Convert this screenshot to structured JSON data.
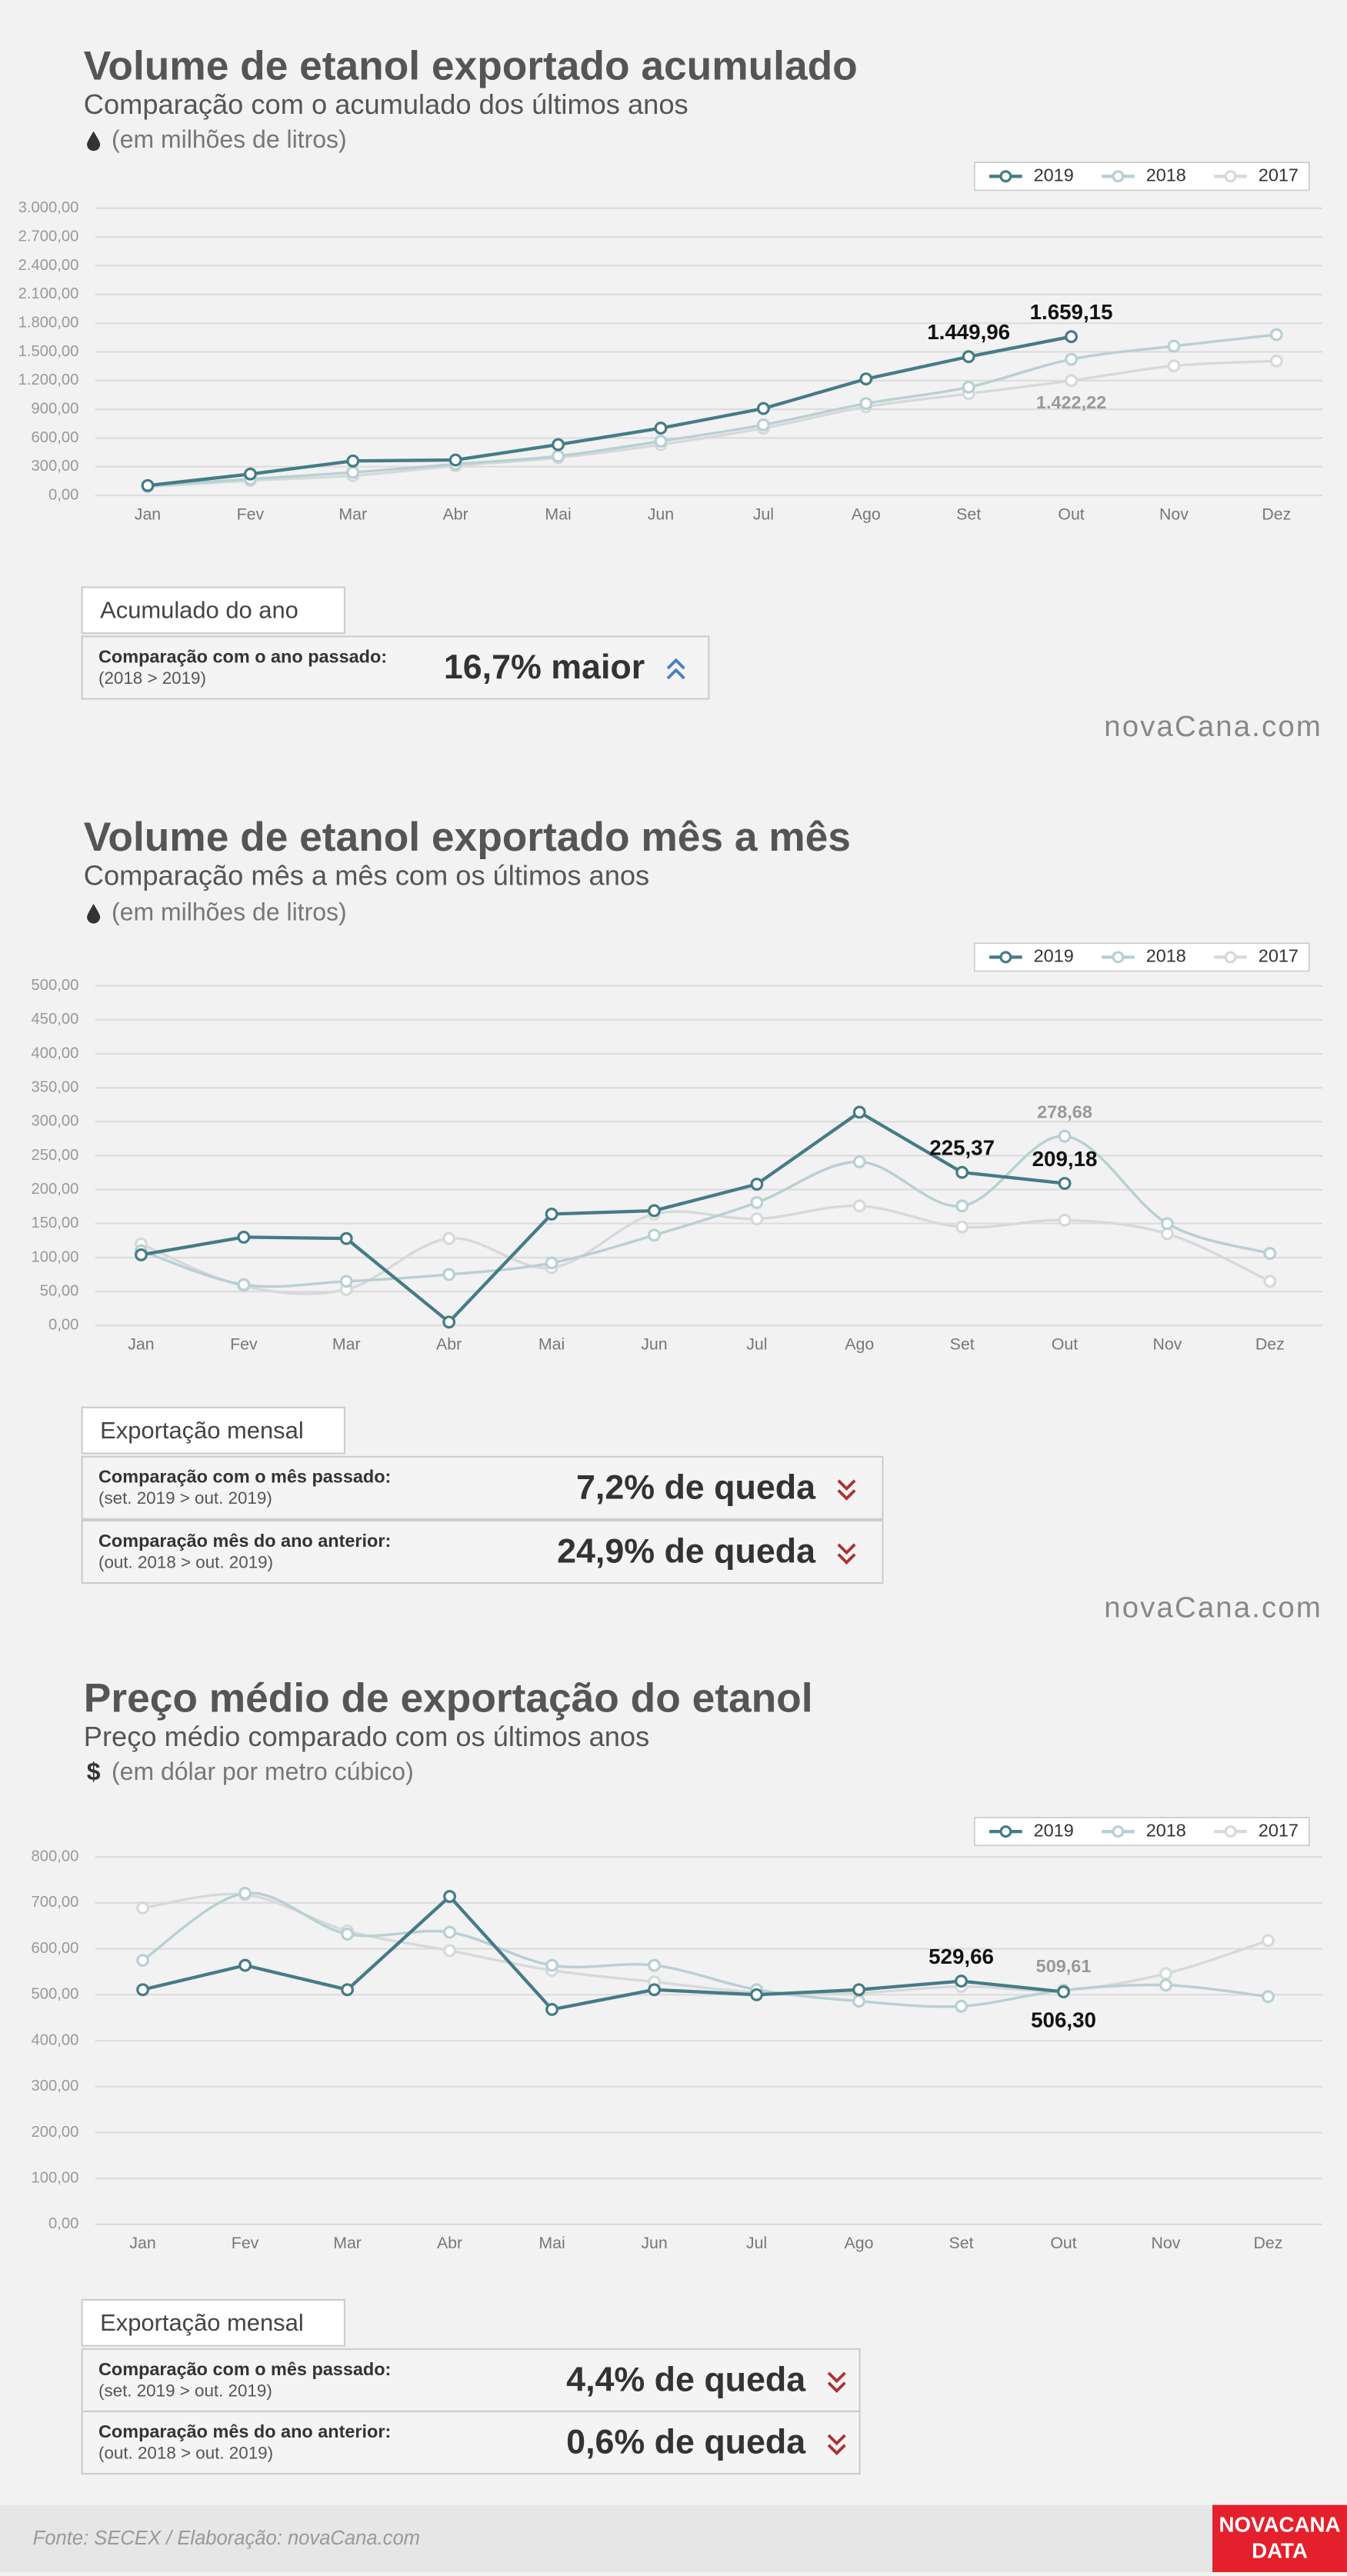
{
  "chart_data": [
    {
      "type": "line",
      "title": "Volume de etanol exportado acumulado",
      "subtitle": "Comparação com o acumulado dos últimos anos",
      "unit_note": "(em milhões de litros)",
      "categories": [
        "Jan",
        "Fev",
        "Mar",
        "Abr",
        "Mai",
        "Jun",
        "Jul",
        "Ago",
        "Set",
        "Out",
        "Nov",
        "Dez"
      ],
      "series": [
        {
          "name": "2019",
          "color": "#457b87",
          "smooth": false,
          "values": [
            103,
            223,
            360,
            370,
            531,
            703,
            908,
            1217,
            1449.96,
            1659.15,
            null,
            null
          ],
          "value_labels": [
            null,
            null,
            null,
            null,
            null,
            null,
            null,
            null,
            "1.449,96",
            "1.659,15",
            null,
            null
          ]
        },
        {
          "name": "2018",
          "color": "#b7d0d3",
          "smooth": true,
          "values": [
            100,
            171,
            240,
            326,
            411,
            566,
            737,
            960,
            1131,
            1422.22,
            1560,
            1680
          ],
          "value_labels": [
            null,
            null,
            null,
            null,
            null,
            null,
            null,
            null,
            null,
            "1.422,22",
            null,
            null
          ]
        },
        {
          "name": "2017",
          "color": "#d6d9da",
          "smooth": true,
          "values": [
            90,
            155,
            206,
            310,
            394,
            531,
            703,
            925,
            1063,
            1200,
            1354,
            1405
          ]
        }
      ],
      "ylim": [
        0,
        3000
      ],
      "yticks": [
        {
          "value": 0,
          "label": "0,00"
        },
        {
          "value": 300,
          "label": "300,00"
        },
        {
          "value": 600,
          "label": "600,00"
        },
        {
          "value": 900,
          "label": "900,00"
        },
        {
          "value": 1200,
          "label": "1.200,00"
        },
        {
          "value": 1500,
          "label": "1.500,00"
        },
        {
          "value": 1800,
          "label": "1.800,00"
        },
        {
          "value": 2100,
          "label": "2.100,00"
        },
        {
          "value": 2400,
          "label": "2.400,00"
        },
        {
          "value": 2700,
          "label": "2.700,00"
        },
        {
          "value": 3000,
          "label": "3.000,00"
        }
      ],
      "grid": true,
      "legend": "top-right"
    },
    {
      "type": "line",
      "title": "Volume de etanol exportado mês a mês",
      "subtitle": "Comparação mês a mês com os últimos anos",
      "unit_note": "(em milhões de litros)",
      "categories": [
        "Jan",
        "Fev",
        "Mar",
        "Abr",
        "Mai",
        "Jun",
        "Jul",
        "Ago",
        "Set",
        "Out",
        "Nov",
        "Dez"
      ],
      "series": [
        {
          "name": "2019",
          "color": "#457b87",
          "smooth": false,
          "values": [
            104,
            130,
            128,
            5,
            164,
            169,
            208,
            314,
            225.37,
            209.18,
            null,
            null
          ],
          "value_labels": [
            null,
            null,
            null,
            null,
            null,
            null,
            null,
            null,
            "225,37",
            "209,18",
            null,
            null
          ]
        },
        {
          "name": "2018",
          "color": "#b7d0d3",
          "smooth": true,
          "values": [
            110,
            60,
            65,
            75,
            92,
            133,
            181,
            241,
            176,
            278.68,
            150,
            106
          ],
          "value_labels": [
            null,
            null,
            null,
            null,
            null,
            null,
            null,
            null,
            null,
            "278,68",
            null,
            null
          ]
        },
        {
          "name": "2017",
          "color": "#d6d9da",
          "smooth": true,
          "values": [
            120,
            58,
            53,
            128,
            85,
            164,
            157,
            176,
            145,
            155,
            135,
            65
          ]
        }
      ],
      "ylim": [
        0,
        500
      ],
      "yticks": [
        {
          "value": 0,
          "label": "0,00"
        },
        {
          "value": 50,
          "label": "50,00"
        },
        {
          "value": 100,
          "label": "100,00"
        },
        {
          "value": 150,
          "label": "150,00"
        },
        {
          "value": 200,
          "label": "200,00"
        },
        {
          "value": 250,
          "label": "250,00"
        },
        {
          "value": 300,
          "label": "300,00"
        },
        {
          "value": 350,
          "label": "350,00"
        },
        {
          "value": 400,
          "label": "400,00"
        },
        {
          "value": 450,
          "label": "450,00"
        },
        {
          "value": 500,
          "label": "500,00"
        }
      ],
      "grid": true,
      "legend": "top-right"
    },
    {
      "type": "line",
      "title": "Preço médio de exportação do etanol",
      "subtitle": "Preço médio comparado com os últimos anos",
      "unit_icon": "$",
      "unit_note": "(em dólar por metro cúbico)",
      "categories": [
        "Jan",
        "Fev",
        "Mar",
        "Abr",
        "Mai",
        "Jun",
        "Jul",
        "Ago",
        "Set",
        "Out",
        "Nov",
        "Dez"
      ],
      "series": [
        {
          "name": "2019",
          "color": "#457b87",
          "smooth": false,
          "values": [
            511,
            564,
            511,
            714,
            468,
            511,
            500,
            511,
            529.66,
            506.3,
            null,
            null
          ],
          "value_labels": [
            null,
            null,
            null,
            null,
            null,
            null,
            null,
            null,
            "529,66",
            "506,30",
            null,
            null
          ]
        },
        {
          "name": "2018",
          "color": "#b7d0d3",
          "smooth": true,
          "values": [
            575,
            721,
            632,
            636,
            564,
            564,
            511,
            486,
            475,
            510,
            521,
            496
          ]
        },
        {
          "name": "2017",
          "color": "#d6d9da",
          "smooth": true,
          "values": [
            689,
            718,
            639,
            596,
            553,
            528,
            505,
            504,
            518,
            509.61,
            546,
            618
          ],
          "value_labels": [
            null,
            null,
            null,
            null,
            null,
            null,
            null,
            null,
            null,
            "509,61",
            null,
            null
          ]
        }
      ],
      "ylim": [
        0,
        800
      ],
      "yticks": [
        {
          "value": 0,
          "label": "0,00"
        },
        {
          "value": 100,
          "label": "100,00"
        },
        {
          "value": 200,
          "label": "200,00"
        },
        {
          "value": 300,
          "label": "300,00"
        },
        {
          "value": 400,
          "label": "400,00"
        },
        {
          "value": 500,
          "label": "500,00"
        },
        {
          "value": 600,
          "label": "600,00"
        },
        {
          "value": 700,
          "label": "700,00"
        },
        {
          "value": 800,
          "label": "800,00"
        }
      ],
      "grid": true,
      "legend": "top-right"
    }
  ],
  "summaries": [
    {
      "header": "Acumulado do ano",
      "rows": [
        {
          "label": "Comparação com o ano passado:",
          "detail": "(2018 > 2019)",
          "result": "16,7% maior",
          "direction": "up"
        }
      ]
    },
    {
      "header": "Exportação mensal",
      "rows": [
        {
          "label": "Comparação com o mês passado:",
          "detail": "(set. 2019 > out. 2019)",
          "result": "7,2% de queda",
          "direction": "down"
        },
        {
          "label": "Comparação mês do ano anterior:",
          "detail": "(out. 2018 > out. 2019)",
          "result": "24,9% de queda",
          "direction": "down"
        }
      ]
    },
    {
      "header": "Exportação mensal",
      "rows": [
        {
          "label": "Comparação com o mês passado:",
          "detail": "(set. 2019 > out. 2019)",
          "result": "4,4% de queda",
          "direction": "down"
        },
        {
          "label": "Comparação mês do ano anterior:",
          "detail": "(out. 2018 > out. 2019)",
          "result": "0,6% de queda",
          "direction": "down"
        }
      ]
    }
  ],
  "watermarks": [
    "novaCana.com",
    "novaCana.com"
  ],
  "footer": {
    "source": "Fonte: SECEX  / Elaboração: novaCana.com",
    "logo_top": "NOVACANA",
    "logo_bottom": "DATA"
  }
}
